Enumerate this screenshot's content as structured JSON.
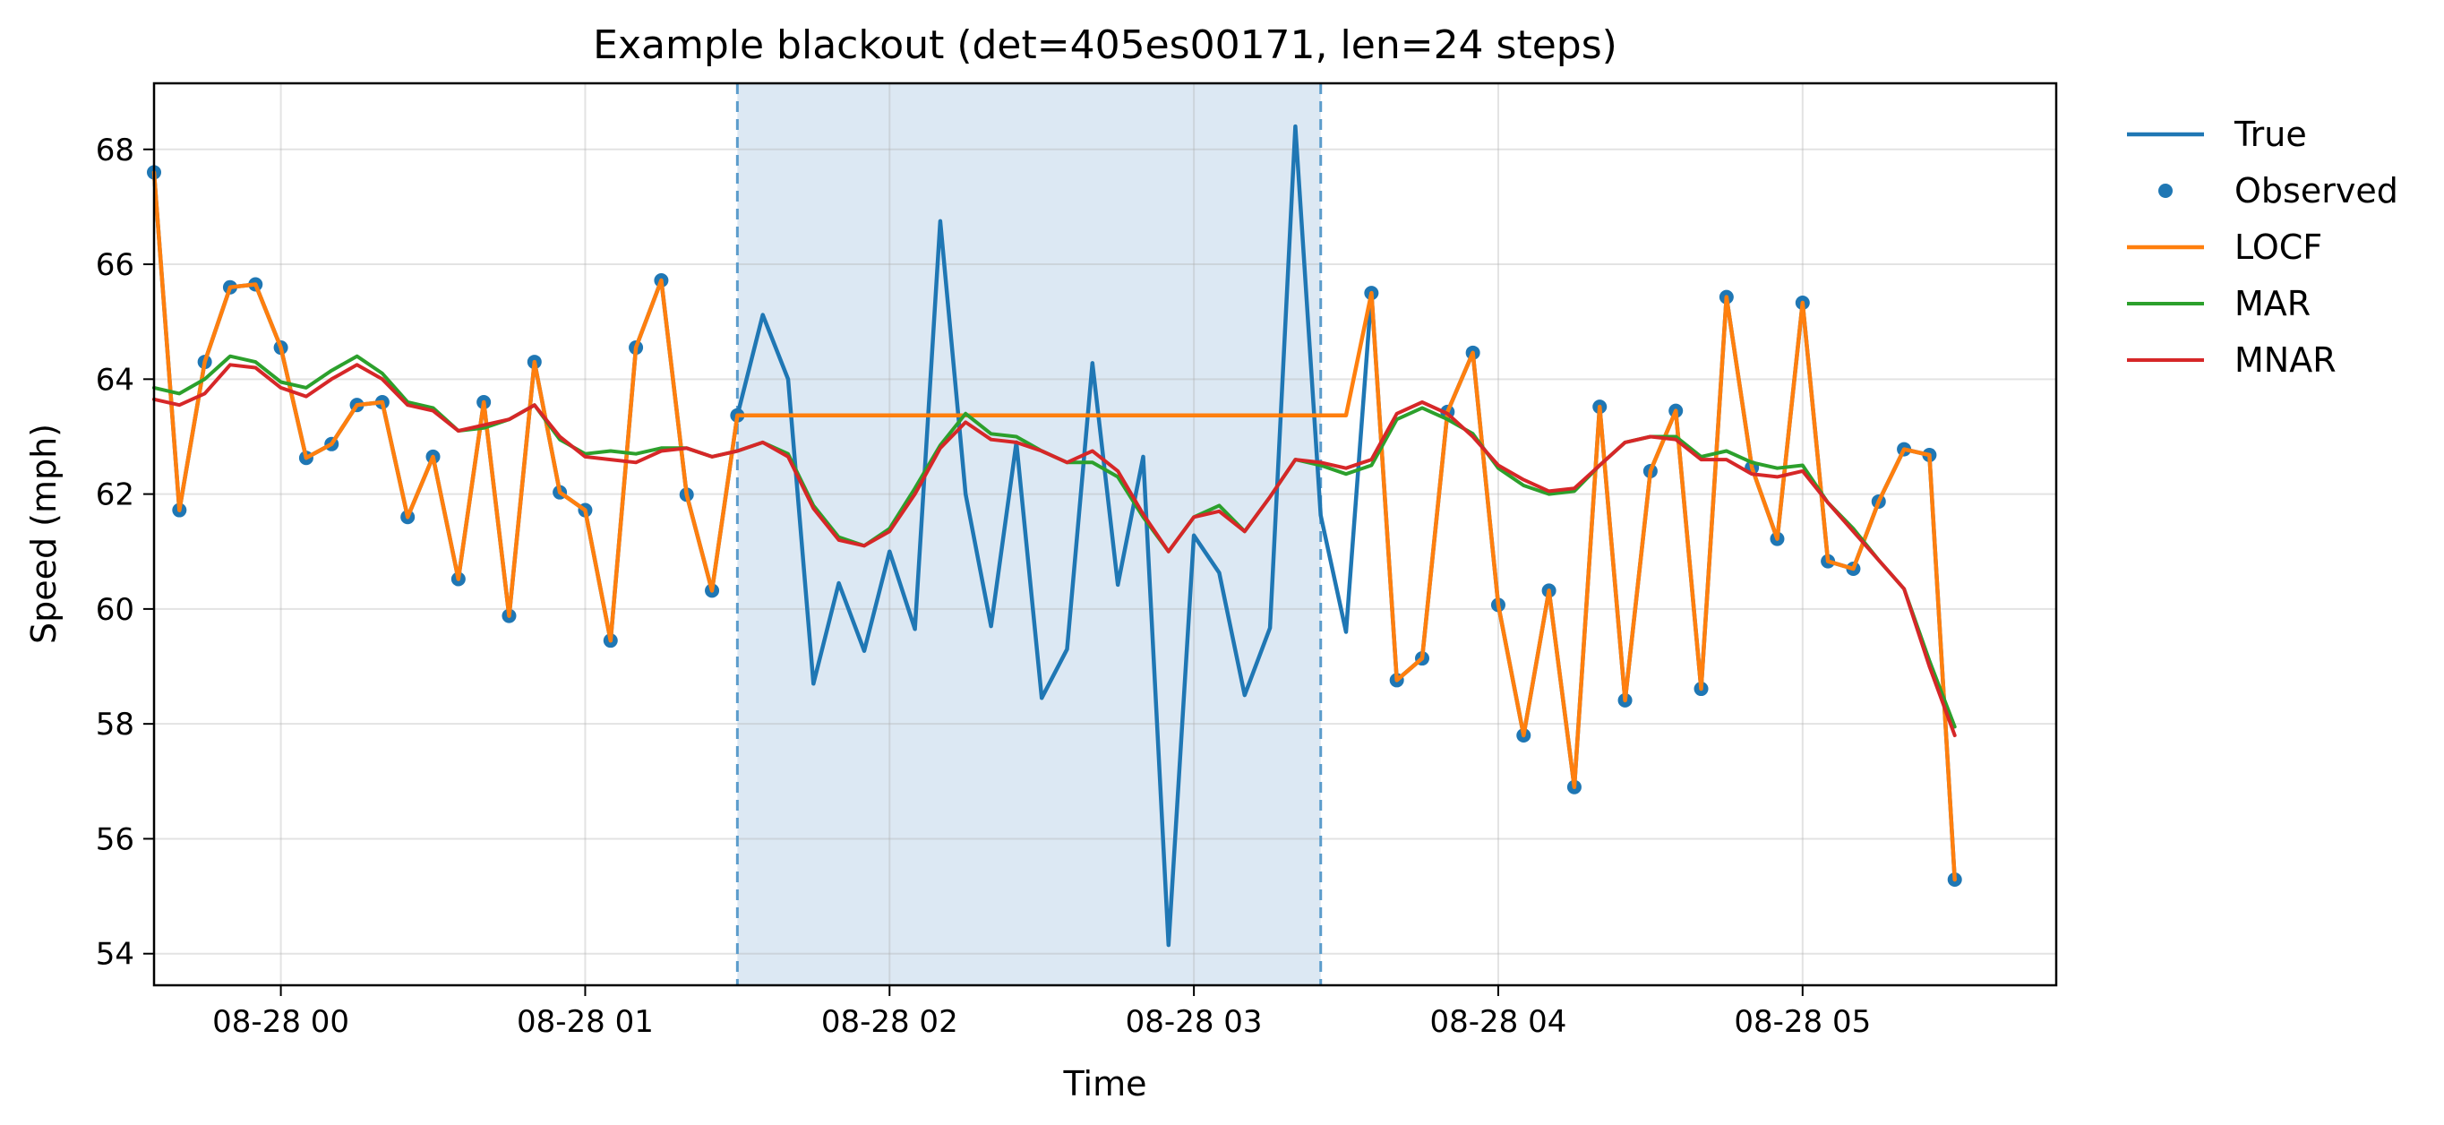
{
  "chart_data": {
    "type": "line",
    "title": "Example blackout (det=405es00171, len=24 steps)",
    "xlabel": "Time",
    "ylabel": "Speed (mph)",
    "x_ticks": [
      "08-28 00",
      "08-28 01",
      "08-28 02",
      "08-28 03",
      "08-28 04",
      "08-28 05"
    ],
    "y_ticks": [
      "54",
      "56",
      "58",
      "60",
      "62",
      "64",
      "66",
      "68"
    ],
    "xlim": [
      "2000-08-27 23:30",
      "2000-08-28 05:45"
    ],
    "ylim": [
      53.45,
      69.15
    ],
    "grid": true,
    "legend_position": "outside-right",
    "blackout": {
      "start": "08-28 01:30",
      "end": "08-28 03:25",
      "color": "#dce8f3",
      "edge_color": "#5b9ccb"
    },
    "x": [
      "23:35",
      "23:40",
      "23:45",
      "23:50",
      "23:55",
      "00:00",
      "00:05",
      "00:10",
      "00:15",
      "00:20",
      "00:25",
      "00:30",
      "00:35",
      "00:40",
      "00:45",
      "00:50",
      "00:55",
      "01:00",
      "01:05",
      "01:10",
      "01:15",
      "01:20",
      "01:25",
      "01:30",
      "01:35",
      "01:40",
      "01:45",
      "01:50",
      "01:55",
      "02:00",
      "02:05",
      "02:10",
      "02:15",
      "02:20",
      "02:25",
      "02:30",
      "02:35",
      "02:40",
      "02:45",
      "02:50",
      "02:55",
      "03:00",
      "03:05",
      "03:10",
      "03:15",
      "03:20",
      "03:25",
      "03:30",
      "03:35",
      "03:40",
      "03:45",
      "03:50",
      "03:55",
      "04:00",
      "04:05",
      "04:10",
      "04:15",
      "04:20",
      "04:25",
      "04:30",
      "04:35",
      "04:40",
      "04:45",
      "04:50",
      "04:55",
      "05:00",
      "05:05",
      "05:10",
      "05:15",
      "05:20",
      "05:25",
      "05:30"
    ],
    "series": [
      {
        "name": "True",
        "color": "#1f77b4",
        "width": 4.5,
        "values": [
          67.6,
          61.72,
          64.3,
          65.6,
          65.65,
          64.55,
          62.63,
          62.87,
          63.55,
          63.6,
          61.6,
          62.65,
          60.52,
          63.6,
          59.88,
          64.3,
          62.03,
          61.72,
          59.45,
          64.55,
          65.72,
          61.99,
          60.32,
          63.37,
          65.12,
          64.0,
          58.7,
          60.45,
          59.27,
          61.0,
          59.65,
          66.75,
          62.0,
          59.7,
          62.9,
          58.45,
          59.3,
          64.28,
          60.42,
          62.65,
          54.15,
          61.28,
          60.63,
          58.5,
          59.67,
          68.4,
          61.63,
          59.6,
          65.5,
          58.76,
          59.14,
          63.43,
          64.46,
          60.07,
          57.8,
          60.32,
          56.9,
          63.52,
          58.41,
          62.4,
          63.45,
          58.61,
          65.43,
          62.46,
          61.22,
          65.33,
          60.83,
          60.7,
          61.87,
          62.78,
          62.68,
          55.29
        ]
      },
      {
        "name": "Observed",
        "color": "#1f77b4",
        "marker": true,
        "values": [
          67.6,
          61.72,
          64.3,
          65.6,
          65.65,
          64.55,
          62.63,
          62.87,
          63.55,
          63.6,
          61.6,
          62.65,
          60.52,
          63.6,
          59.88,
          64.3,
          62.03,
          61.72,
          59.45,
          64.55,
          65.72,
          61.99,
          60.32,
          63.37,
          null,
          null,
          null,
          null,
          null,
          null,
          null,
          null,
          null,
          null,
          null,
          null,
          null,
          null,
          null,
          null,
          null,
          null,
          null,
          null,
          null,
          null,
          null,
          null,
          65.5,
          58.76,
          59.14,
          63.43,
          64.46,
          60.07,
          57.8,
          60.32,
          56.9,
          63.52,
          58.41,
          62.4,
          63.45,
          58.61,
          65.43,
          62.46,
          61.22,
          65.33,
          60.83,
          60.7,
          61.87,
          62.78,
          62.68,
          55.29
        ]
      },
      {
        "name": "LOCF",
        "color": "#ff7f0e",
        "width": 4.5,
        "values": [
          67.6,
          61.72,
          64.3,
          65.6,
          65.65,
          64.55,
          62.63,
          62.87,
          63.55,
          63.6,
          61.6,
          62.65,
          60.52,
          63.6,
          59.88,
          64.3,
          62.03,
          61.72,
          59.45,
          64.55,
          65.72,
          61.99,
          60.32,
          63.37,
          63.37,
          63.37,
          63.37,
          63.37,
          63.37,
          63.37,
          63.37,
          63.37,
          63.37,
          63.37,
          63.37,
          63.37,
          63.37,
          63.37,
          63.37,
          63.37,
          63.37,
          63.37,
          63.37,
          63.37,
          63.37,
          63.37,
          63.37,
          63.37,
          65.5,
          58.76,
          59.14,
          63.43,
          64.46,
          60.07,
          57.8,
          60.32,
          56.9,
          63.52,
          58.41,
          62.4,
          63.45,
          58.61,
          65.43,
          62.46,
          61.22,
          65.33,
          60.83,
          60.7,
          61.87,
          62.78,
          62.68,
          55.29
        ]
      },
      {
        "name": "MAR",
        "color": "#2ca02c",
        "width": 4,
        "values": [
          63.85,
          63.75,
          64.0,
          64.4,
          64.3,
          63.95,
          63.85,
          64.15,
          64.4,
          64.1,
          63.6,
          63.5,
          63.1,
          63.15,
          63.3,
          63.55,
          62.95,
          62.7,
          62.75,
          62.7,
          62.8,
          62.8,
          62.65,
          62.75,
          62.9,
          62.7,
          61.8,
          61.25,
          61.1,
          61.4,
          62.1,
          62.85,
          63.4,
          63.05,
          63.0,
          62.75,
          62.55,
          62.55,
          62.3,
          61.6,
          61.0,
          61.6,
          61.8,
          61.35,
          61.95,
          62.6,
          62.5,
          62.35,
          62.5,
          63.3,
          63.5,
          63.3,
          63.05,
          62.45,
          62.15,
          62.0,
          62.05,
          62.5,
          62.9,
          63.0,
          63.0,
          62.65,
          62.75,
          62.55,
          62.45,
          62.5,
          61.85,
          61.4,
          60.85,
          60.35,
          59.1,
          57.95
        ]
      },
      {
        "name": "MNAR",
        "color": "#d62728",
        "width": 4,
        "values": [
          63.65,
          63.55,
          63.75,
          64.25,
          64.2,
          63.85,
          63.7,
          64.0,
          64.25,
          64.0,
          63.55,
          63.45,
          63.1,
          63.2,
          63.3,
          63.55,
          63.0,
          62.65,
          62.6,
          62.55,
          62.75,
          62.8,
          62.65,
          62.75,
          62.9,
          62.65,
          61.75,
          61.2,
          61.1,
          61.35,
          62.0,
          62.8,
          63.25,
          62.95,
          62.9,
          62.75,
          62.55,
          62.75,
          62.4,
          61.65,
          61.0,
          61.6,
          61.7,
          61.35,
          61.95,
          62.6,
          62.55,
          62.45,
          62.6,
          63.4,
          63.6,
          63.4,
          63.0,
          62.5,
          62.25,
          62.05,
          62.1,
          62.5,
          62.9,
          63.0,
          62.95,
          62.6,
          62.6,
          62.35,
          62.3,
          62.4,
          61.85,
          61.35,
          60.85,
          60.35,
          59.0,
          57.8
        ]
      }
    ]
  }
}
